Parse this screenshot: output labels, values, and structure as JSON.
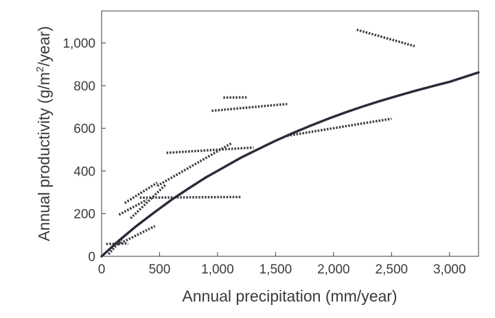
{
  "chart_data": {
    "type": "line",
    "title": "",
    "xlabel": "Annual precipitation (mm/year)",
    "ylabel": {
      "before": "Annual productivity (g/m",
      "superscript": "2",
      "after": "/year)"
    },
    "xlim": [
      0,
      3250
    ],
    "ylim": [
      0,
      1150
    ],
    "x_ticks": [
      {
        "value": 0,
        "label": "0"
      },
      {
        "value": 500,
        "label": "500"
      },
      {
        "value": 1000,
        "label": "1,000"
      },
      {
        "value": 1500,
        "label": "1,500"
      },
      {
        "value": 2000,
        "label": "2,000"
      },
      {
        "value": 2500,
        "label": "2,500"
      },
      {
        "value": 3000,
        "label": "3,000"
      }
    ],
    "y_ticks": [
      {
        "value": 0,
        "label": "0"
      },
      {
        "value": 200,
        "label": "200"
      },
      {
        "value": 400,
        "label": "400"
      },
      {
        "value": 600,
        "label": "600"
      },
      {
        "value": 800,
        "label": "800"
      },
      {
        "value": 1000,
        "label": "1,000"
      }
    ],
    "grid": false,
    "legend": "none",
    "series": [
      {
        "style": "solid",
        "color": "#2b2b3a",
        "points": [
          [
            0,
            0
          ],
          [
            150,
            74
          ],
          [
            300,
            142
          ],
          [
            450,
            204
          ],
          [
            600,
            264
          ],
          [
            750,
            318
          ],
          [
            900,
            370
          ],
          [
            1050,
            416
          ],
          [
            1200,
            462
          ],
          [
            1350,
            502
          ],
          [
            1500,
            542
          ],
          [
            1650,
            578
          ],
          [
            1800,
            612
          ],
          [
            1950,
            644
          ],
          [
            2100,
            674
          ],
          [
            2250,
            702
          ],
          [
            2400,
            728
          ],
          [
            2550,
            752
          ],
          [
            2700,
            775
          ],
          [
            2850,
            797
          ],
          [
            3000,
            818
          ],
          [
            3250,
            862
          ]
        ]
      }
    ],
    "segments": [
      {
        "x1": 40,
        "y1": 58,
        "x2": 230,
        "y2": 60
      },
      {
        "x1": 60,
        "y1": 10,
        "x2": 200,
        "y2": 98
      },
      {
        "x1": 140,
        "y1": 55,
        "x2": 460,
        "y2": 142
      },
      {
        "x1": 150,
        "y1": 195,
        "x2": 390,
        "y2": 265
      },
      {
        "x1": 200,
        "y1": 250,
        "x2": 480,
        "y2": 345
      },
      {
        "x1": 250,
        "y1": 178,
        "x2": 550,
        "y2": 335
      },
      {
        "x1": 330,
        "y1": 275,
        "x2": 1200,
        "y2": 278
      },
      {
        "x1": 480,
        "y1": 330,
        "x2": 1120,
        "y2": 530
      },
      {
        "x1": 560,
        "y1": 485,
        "x2": 1310,
        "y2": 510
      },
      {
        "x1": 950,
        "y1": 682,
        "x2": 1600,
        "y2": 714
      },
      {
        "x1": 1050,
        "y1": 744,
        "x2": 1250,
        "y2": 745
      },
      {
        "x1": 1600,
        "y1": 565,
        "x2": 2500,
        "y2": 645
      },
      {
        "x1": 2200,
        "y1": 1062,
        "x2": 2700,
        "y2": 985
      }
    ],
    "colors": {
      "curve": "#2b2b3a",
      "segments": "#3d3d45",
      "axes": "#3a3a3a"
    }
  }
}
